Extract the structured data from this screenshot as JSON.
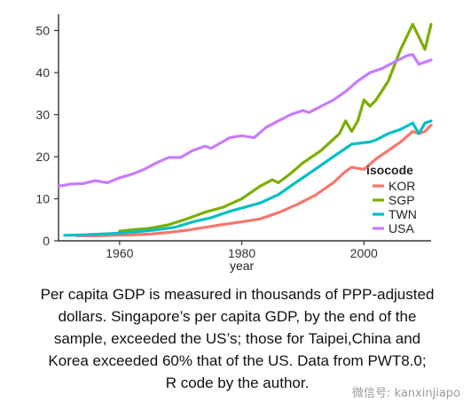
{
  "chart_data": {
    "type": "line",
    "title": "",
    "xlabel": "year",
    "ylabel": "",
    "xlim": [
      1950,
      2011
    ],
    "ylim": [
      0,
      52
    ],
    "x_ticks": [
      1960,
      1980,
      2000
    ],
    "y_ticks": [
      0,
      10,
      20,
      30,
      40,
      50
    ],
    "grid": false,
    "legend_title": "isocode",
    "legend_position": "right, inside",
    "series": [
      {
        "name": "KOR",
        "color": "#F8766D",
        "x": [
          1953,
          1956,
          1959,
          1962,
          1965,
          1968,
          1971,
          1974,
          1977,
          1980,
          1983,
          1986,
          1989,
          1992,
          1995,
          1997,
          1998,
          2000,
          2002,
          2004,
          2006,
          2008,
          2009,
          2010,
          2011
        ],
        "y": [
          1.2,
          1.2,
          1.3,
          1.4,
          1.6,
          2.0,
          2.5,
          3.2,
          3.9,
          4.5,
          5.2,
          6.7,
          8.6,
          10.8,
          13.8,
          16.5,
          17.5,
          17.0,
          19.5,
          21.5,
          23.5,
          26.0,
          25.5,
          26.0,
          27.5
        ]
      },
      {
        "name": "SGP",
        "color": "#7CAE00",
        "x": [
          1960,
          1962,
          1965,
          1968,
          1971,
          1974,
          1977,
          1980,
          1983,
          1985,
          1986,
          1988,
          1990,
          1993,
          1996,
          1997,
          1998,
          1999,
          2000,
          2001,
          2002,
          2004,
          2006,
          2008,
          2010,
          2011
        ],
        "y": [
          2.3,
          2.6,
          3.0,
          3.8,
          5.2,
          6.8,
          8.0,
          10.0,
          13.0,
          14.5,
          13.8,
          16.0,
          18.5,
          21.5,
          25.5,
          28.5,
          26.0,
          28.5,
          33.5,
          32.0,
          33.5,
          38.0,
          45.5,
          51.5,
          45.5,
          51.5
        ]
      },
      {
        "name": "TWN",
        "color": "#00BFC4",
        "x": [
          1951,
          1954,
          1957,
          1960,
          1963,
          1966,
          1969,
          1972,
          1975,
          1978,
          1980,
          1983,
          1986,
          1989,
          1992,
          1995,
          1998,
          2001,
          2002,
          2004,
          2006,
          2008,
          2009,
          2010,
          2011
        ],
        "y": [
          1.3,
          1.4,
          1.6,
          1.8,
          2.2,
          2.6,
          3.2,
          4.5,
          5.5,
          7.0,
          7.8,
          9.0,
          11.0,
          14.0,
          17.0,
          20.0,
          23.0,
          23.5,
          24.0,
          25.5,
          26.5,
          28.0,
          25.5,
          28.0,
          28.5
        ]
      },
      {
        "name": "USA",
        "color": "#C77CFF",
        "x": [
          1950,
          1952,
          1954,
          1956,
          1958,
          1960,
          1962,
          1964,
          1966,
          1968,
          1970,
          1972,
          1974,
          1975,
          1978,
          1980,
          1982,
          1984,
          1986,
          1988,
          1990,
          1991,
          1993,
          1995,
          1997,
          1999,
          2001,
          2003,
          2005,
          2007,
          2008,
          2009,
          2010,
          2011
        ],
        "y": [
          13.0,
          13.5,
          13.6,
          14.3,
          13.8,
          15.0,
          15.8,
          17.0,
          18.5,
          19.8,
          19.8,
          21.5,
          22.5,
          22.0,
          24.5,
          25.0,
          24.5,
          27.0,
          28.5,
          30.0,
          31.0,
          30.5,
          32.0,
          33.5,
          35.5,
          38.0,
          40.0,
          41.0,
          42.5,
          44.0,
          44.3,
          42.0,
          42.5,
          43.0
        ]
      }
    ]
  },
  "caption": {
    "line1": "Per capita GDP is measured in thousands of PPP-adjusted",
    "line2": "dollars. Singapore’s per capita GDP, by the end of the",
    "line3": "sample, exceeded the US’s; those for Taipei,China and",
    "line4": "Korea exceeded 60% that of the US. Data from PWT8.0;",
    "line5": "R code by the author."
  },
  "watermark": "微信号: kanxinjiapo"
}
